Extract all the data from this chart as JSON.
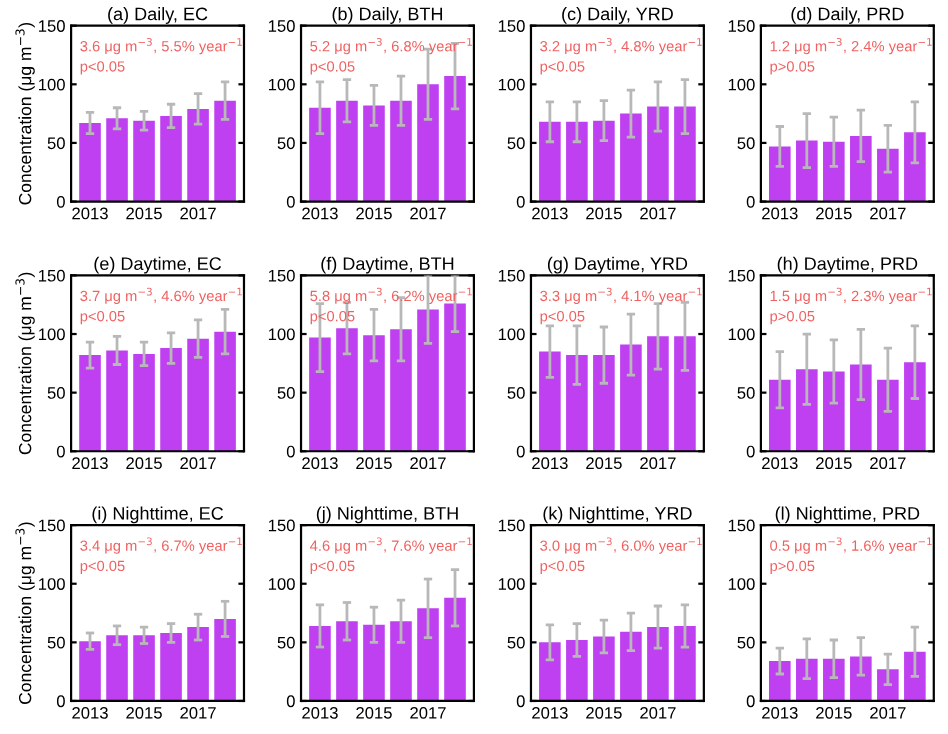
{
  "chart_data": [
    {
      "type": "bar",
      "title": "(a) Daily, EC",
      "ylabel": "Concentration (μg m$^{−3}$)",
      "categories": [
        "2013",
        null,
        "2015",
        null,
        "2017",
        null
      ],
      "values": [
        67,
        71,
        69,
        73,
        79,
        86
      ],
      "errors": [
        9,
        9,
        8,
        10,
        13,
        16
      ],
      "color": "#bf40f0",
      "ylim": [
        0,
        150
      ],
      "yticks": [
        0,
        50,
        100,
        150
      ],
      "annotations": [
        "3.6 μg m$^{−3}$, 5.5% year$^{−1}$",
        "p<0.05"
      ]
    },
    {
      "type": "bar",
      "title": "(b) Daily, BTH",
      "categories": [
        "2013",
        null,
        "2015",
        null,
        "2017",
        null
      ],
      "values": [
        80,
        86,
        82,
        86,
        100,
        107
      ],
      "errors": [
        22,
        18,
        17,
        21,
        30,
        28
      ],
      "color": "#bf40f0",
      "ylim": [
        0,
        150
      ],
      "yticks": [
        0,
        50,
        100,
        150
      ],
      "annotations": [
        "5.2 μg m$^{−3}$, 6.8% year$^{−1}$",
        "p<0.05"
      ]
    },
    {
      "type": "bar",
      "title": "(c) Daily, YRD",
      "categories": [
        "2013",
        null,
        "2015",
        null,
        "2017",
        null
      ],
      "values": [
        68,
        68,
        69,
        75,
        81,
        81
      ],
      "errors": [
        17,
        17,
        17,
        20,
        21,
        23
      ],
      "color": "#bf40f0",
      "ylim": [
        0,
        150
      ],
      "yticks": [
        0,
        50,
        100,
        150
      ],
      "annotations": [
        "3.2 μg m$^{−3}$, 4.8% year$^{−1}$",
        "p<0.05"
      ]
    },
    {
      "type": "bar",
      "title": "(d) Daily, PRD",
      "categories": [
        "2013",
        null,
        "2015",
        null,
        "2017",
        null
      ],
      "values": [
        47,
        52,
        51,
        56,
        45,
        59
      ],
      "errors": [
        17,
        23,
        21,
        22,
        20,
        26
      ],
      "color": "#bf40f0",
      "ylim": [
        0,
        150
      ],
      "yticks": [
        0,
        50,
        100,
        150
      ],
      "annotations": [
        "1.2 μg m$^{−3}$, 2.4% year$^{−1}$",
        "p>0.05"
      ]
    },
    {
      "type": "bar",
      "title": "(e) Daytime, EC",
      "ylabel": "Concentration (μg m$^{−3}$)",
      "categories": [
        "2013",
        null,
        "2015",
        null,
        "2017",
        null
      ],
      "values": [
        82,
        86,
        83,
        88,
        96,
        102
      ],
      "errors": [
        11,
        12,
        10,
        13,
        16,
        19
      ],
      "color": "#bf40f0",
      "ylim": [
        0,
        150
      ],
      "yticks": [
        0,
        50,
        100,
        150
      ],
      "annotations": [
        "3.7 μg m$^{−3}$, 4.6% year$^{−1}$",
        "p<0.05"
      ]
    },
    {
      "type": "bar",
      "title": "(f) Daytime, BTH",
      "categories": [
        "2013",
        null,
        "2015",
        null,
        "2017",
        null
      ],
      "values": [
        97,
        105,
        99,
        104,
        121,
        126
      ],
      "errors": [
        29,
        22,
        22,
        27,
        29,
        24
      ],
      "color": "#bf40f0",
      "ylim": [
        0,
        150
      ],
      "yticks": [
        0,
        50,
        100,
        150
      ],
      "annotations": [
        "5.8 μg m$^{−3}$, 6.2% year$^{−1}$",
        "p<0.05"
      ]
    },
    {
      "type": "bar",
      "title": "(g) Daytime, YRD",
      "categories": [
        "2013",
        null,
        "2015",
        null,
        "2017",
        null
      ],
      "values": [
        85,
        82,
        82,
        91,
        98,
        98
      ],
      "errors": [
        22,
        25,
        24,
        26,
        28,
        29
      ],
      "color": "#bf40f0",
      "ylim": [
        0,
        150
      ],
      "yticks": [
        0,
        50,
        100,
        150
      ],
      "annotations": [
        "3.3 μg m$^{−3}$, 4.1% year$^{−1}$",
        "p<0.05"
      ]
    },
    {
      "type": "bar",
      "title": "(h) Daytime, PRD",
      "categories": [
        "2013",
        null,
        "2015",
        null,
        "2017",
        null
      ],
      "values": [
        61,
        70,
        68,
        74,
        61,
        76
      ],
      "errors": [
        24,
        30,
        27,
        30,
        27,
        31
      ],
      "color": "#bf40f0",
      "ylim": [
        0,
        150
      ],
      "yticks": [
        0,
        50,
        100,
        150
      ],
      "annotations": [
        "1.5 μg m$^{−3}$, 2.3% year$^{−1}$",
        "p>0.05"
      ]
    },
    {
      "type": "bar",
      "title": "(i) Nighttime, EC",
      "ylabel": "Concentration (μg m$^{−3}$)",
      "categories": [
        "2013",
        null,
        "2015",
        null,
        "2017",
        null
      ],
      "values": [
        51,
        56,
        56,
        58,
        63,
        70
      ],
      "errors": [
        7,
        8,
        7,
        8,
        11,
        15
      ],
      "color": "#bf40f0",
      "ylim": [
        0,
        150
      ],
      "yticks": [
        0,
        50,
        100,
        150
      ],
      "annotations": [
        "3.4 μg m$^{−3}$, 6.7% year$^{−1}$",
        "p<0.05"
      ]
    },
    {
      "type": "bar",
      "title": "(j) Nighttime, BTH",
      "categories": [
        "2013",
        null,
        "2015",
        null,
        "2017",
        null
      ],
      "values": [
        64,
        68,
        65,
        68,
        79,
        88
      ],
      "errors": [
        18,
        16,
        15,
        18,
        25,
        24
      ],
      "color": "#bf40f0",
      "ylim": [
        0,
        150
      ],
      "yticks": [
        0,
        50,
        100,
        150
      ],
      "annotations": [
        "4.6 μg m$^{−3}$, 7.6% year$^{−1}$",
        "p<0.05"
      ]
    },
    {
      "type": "bar",
      "title": "(k) Nighttime, YRD",
      "categories": [
        "2013",
        null,
        "2015",
        null,
        "2017",
        null
      ],
      "values": [
        50,
        52,
        55,
        59,
        63,
        64
      ],
      "errors": [
        15,
        14,
        14,
        16,
        18,
        18
      ],
      "color": "#bf40f0",
      "ylim": [
        0,
        150
      ],
      "yticks": [
        0,
        50,
        100,
        150
      ],
      "annotations": [
        "3.0 μg m$^{−3}$, 6.0% year$^{−1}$",
        "p<0.05"
      ]
    },
    {
      "type": "bar",
      "title": "(l) Nighttime, PRD",
      "categories": [
        "2013",
        null,
        "2015",
        null,
        "2017",
        null
      ],
      "values": [
        34,
        36,
        36,
        38,
        27,
        42
      ],
      "errors": [
        11,
        17,
        16,
        16,
        13,
        21
      ],
      "color": "#bf40f0",
      "ylim": [
        0,
        150
      ],
      "yticks": [
        0,
        50,
        100,
        150
      ],
      "annotations": [
        "0.5 μg m$^{−3}$, 1.6% year$^{−1}$",
        "p>0.05"
      ]
    }
  ]
}
